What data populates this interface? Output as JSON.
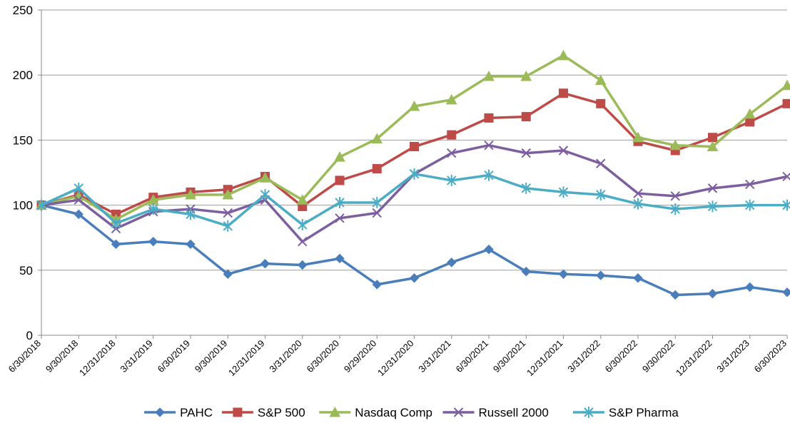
{
  "chart_data": {
    "type": "line",
    "title": "",
    "xlabel": "",
    "ylabel": "",
    "ylim": [
      0,
      250
    ],
    "yticks": [
      0,
      50,
      100,
      150,
      200,
      250
    ],
    "grid": true,
    "legend_position": "bottom",
    "categories": [
      "6/30/2018",
      "9/30/2018",
      "12/31/2018",
      "3/31/2019",
      "6/30/2019",
      "9/30/2019",
      "12/31/2019",
      "3/31/2020",
      "6/30/2020",
      "9/29/2020",
      "12/31/2020",
      "3/31/2021",
      "6/30/2021",
      "9/30/2021",
      "12/31/2021",
      "3/31/2022",
      "6/30/2022",
      "9/30/2022",
      "12/31/2022",
      "3/31/2023",
      "6/30/2023"
    ],
    "series": [
      {
        "name": "PAHC",
        "color": "#4a7ebb",
        "marker": "diamond",
        "values": [
          100,
          93,
          70,
          72,
          70,
          47,
          55,
          54,
          59,
          39,
          44,
          56,
          66,
          49,
          47,
          46,
          44,
          31,
          32,
          37,
          33
        ]
      },
      {
        "name": "S&P 500",
        "color": "#be4b48",
        "marker": "square",
        "values": [
          100,
          108,
          93,
          106,
          110,
          112,
          122,
          99,
          119,
          128,
          145,
          154,
          167,
          168,
          186,
          178,
          149,
          142,
          152,
          164,
          178
        ]
      },
      {
        "name": "Nasdaq Comp",
        "color": "#9bbb59",
        "marker": "triangle",
        "values": [
          100,
          107,
          89,
          104,
          108,
          108,
          121,
          104,
          137,
          151,
          176,
          181,
          199,
          199,
          215,
          196,
          152,
          146,
          145,
          170,
          192
        ]
      },
      {
        "name": "Russell 2000",
        "color": "#7d5fa0",
        "marker": "x",
        "values": [
          100,
          104,
          82,
          95,
          97,
          94,
          104,
          72,
          90,
          94,
          124,
          140,
          146,
          140,
          142,
          132,
          109,
          107,
          113,
          116,
          122
        ]
      },
      {
        "name": "S&P Pharma",
        "color": "#4bacc6",
        "marker": "asterisk",
        "values": [
          100,
          113,
          86,
          97,
          93,
          84,
          108,
          85,
          102,
          102,
          124,
          119,
          123,
          113,
          110,
          108,
          101,
          97,
          99,
          100,
          100
        ]
      }
    ]
  }
}
